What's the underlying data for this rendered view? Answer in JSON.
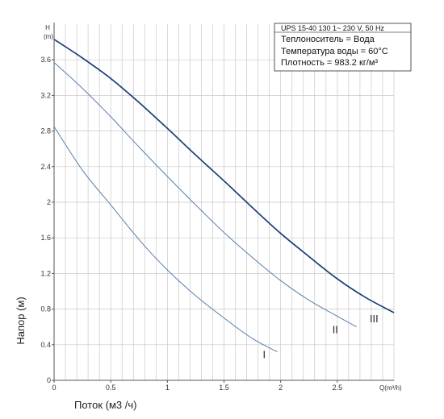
{
  "chart_data": {
    "type": "line",
    "y_axis_symbol": "H",
    "y_axis_unit": "(m)",
    "x_axis_symbol": "Q(m³/h)",
    "xlabel": "Поток (м3 /ч)",
    "ylabel": "Напор (м)",
    "xlim": [
      0,
      3.0
    ],
    "ylim": [
      0,
      4.0
    ],
    "x_ticks": [
      0,
      0.5,
      1,
      1.5,
      2,
      2.5
    ],
    "x_tick_labels": [
      "0",
      "0.5",
      "1",
      "1.5",
      "2",
      "2.5"
    ],
    "y_ticks": [
      0,
      0.4,
      0.8,
      1.2,
      1.6,
      2,
      2.4,
      2.8,
      3.2,
      3.6
    ],
    "y_tick_labels": [
      "0",
      "0.4",
      "0.8",
      "1.2",
      "1.6",
      "2",
      "2.4",
      "2.8",
      "3.2",
      "3.6"
    ],
    "grid": true,
    "series": [
      {
        "name": "I",
        "color": "#5a7fa8",
        "x": [
          0,
          0.25,
          0.5,
          0.75,
          1.0,
          1.25,
          1.5,
          1.75,
          1.97
        ],
        "y": [
          2.85,
          2.36,
          1.97,
          1.58,
          1.24,
          0.95,
          0.7,
          0.47,
          0.32
        ]
      },
      {
        "name": "II",
        "color": "#5a7fa8",
        "x": [
          0,
          0.25,
          0.5,
          0.75,
          1.0,
          1.25,
          1.5,
          1.75,
          2.0,
          2.25,
          2.5,
          2.67
        ],
        "y": [
          3.57,
          3.28,
          2.96,
          2.62,
          2.29,
          1.97,
          1.66,
          1.38,
          1.12,
          0.9,
          0.72,
          0.6
        ]
      },
      {
        "name": "III",
        "color": "#1f3f78",
        "x": [
          0,
          0.25,
          0.5,
          0.75,
          1.0,
          1.25,
          1.5,
          1.75,
          2.0,
          2.25,
          2.5,
          2.75,
          3.0
        ],
        "y": [
          3.83,
          3.62,
          3.39,
          3.12,
          2.83,
          2.53,
          2.24,
          1.94,
          1.65,
          1.39,
          1.14,
          0.93,
          0.76
        ]
      }
    ],
    "info_box": {
      "header": "UPS 15-40 130    1~ 230 V, 50 Hz",
      "lines": [
        "Теплоноситель = Вода",
        "Температура воды = 60°C",
        "Плотность = 983.2 кг/м³"
      ]
    },
    "colors": {
      "grid": "#c8c8c8",
      "axis": "#555555",
      "box_border": "#555555"
    }
  }
}
